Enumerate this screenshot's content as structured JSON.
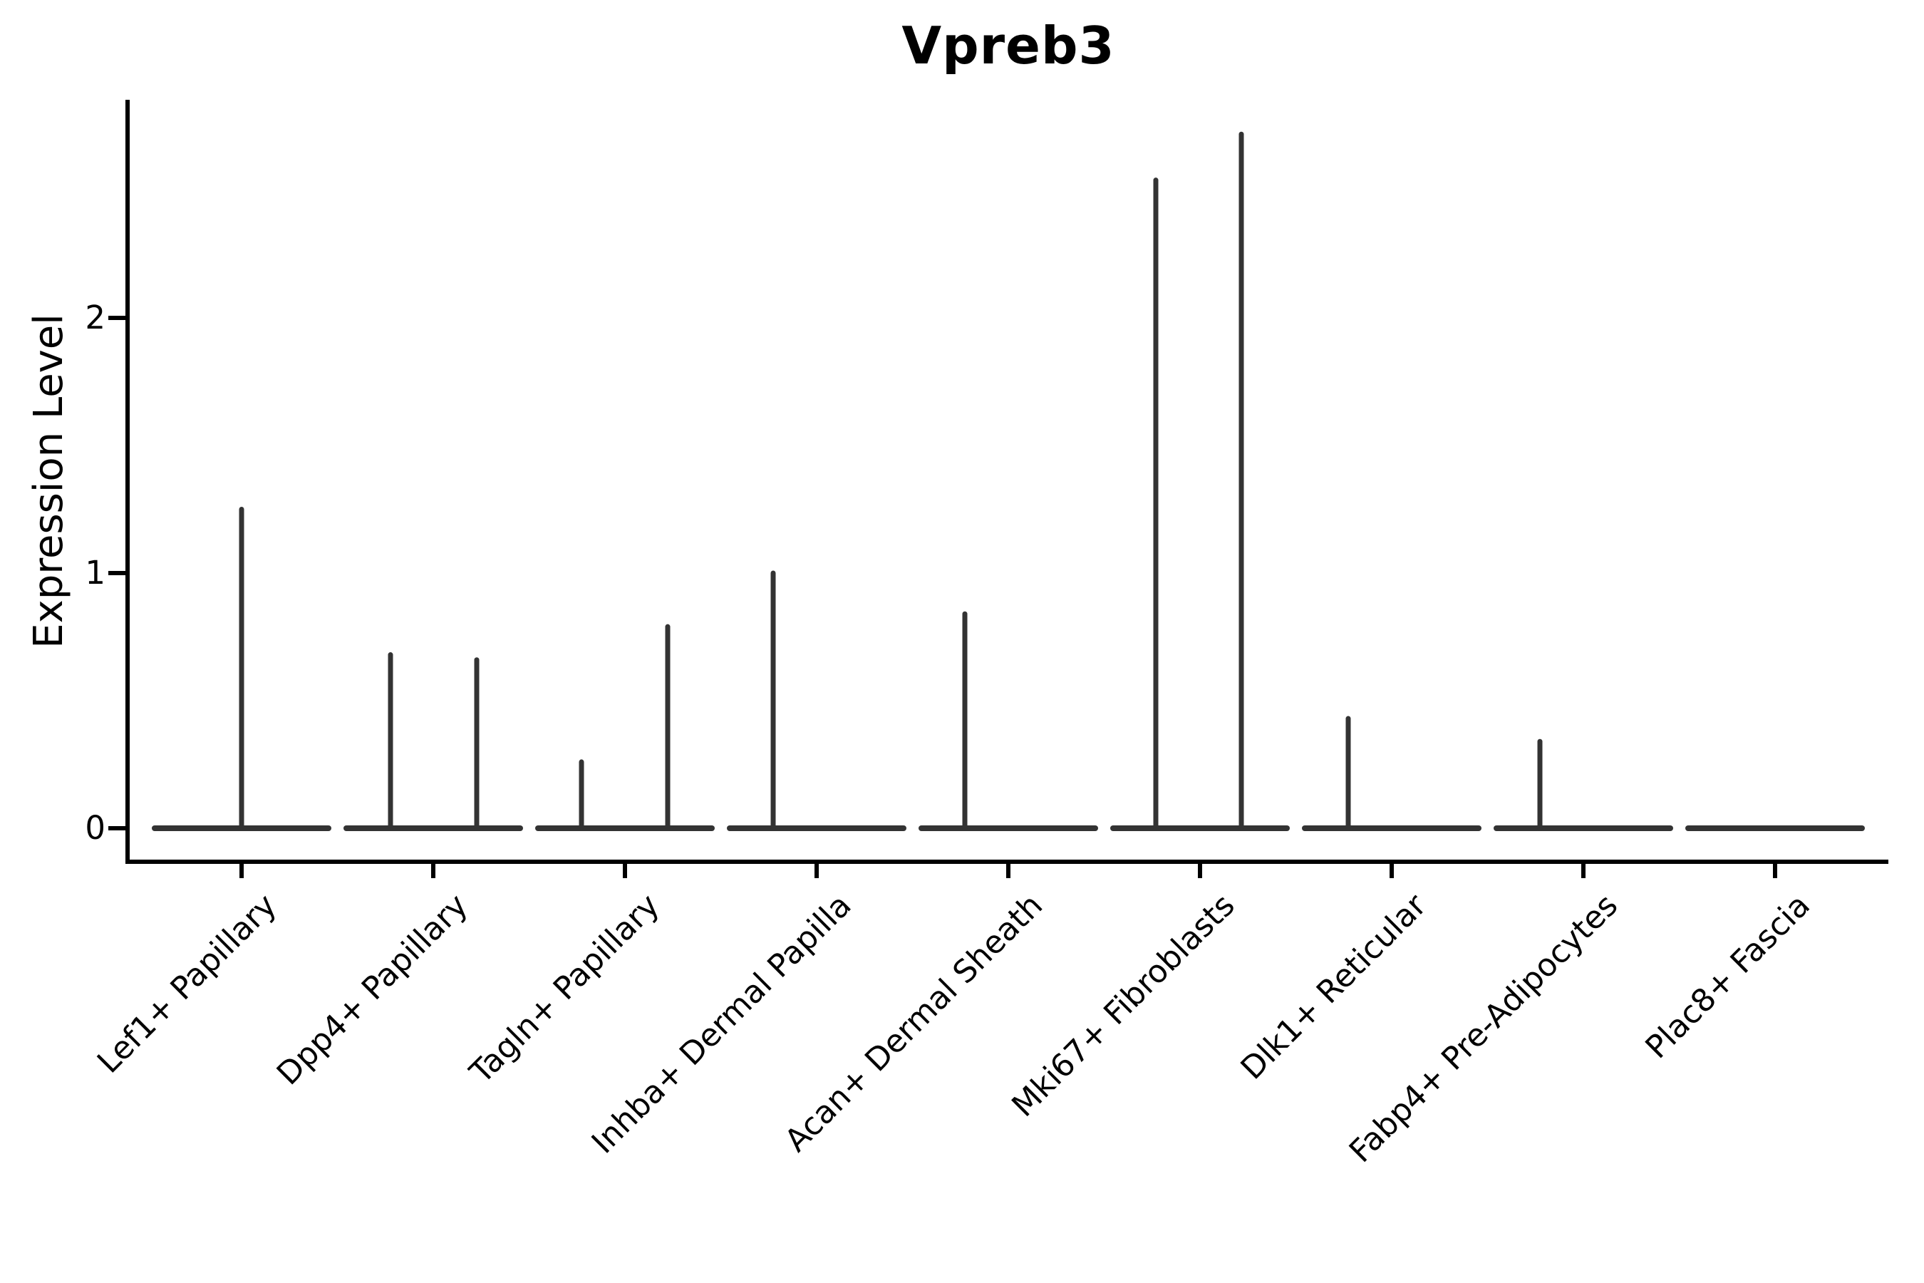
{
  "chart_data": {
    "type": "violin",
    "title": "Vpreb3",
    "xlabel": "",
    "ylabel": "Expression Level",
    "yticks": [
      0,
      1,
      2
    ],
    "ylim": [
      -0.13,
      2.85
    ],
    "grid": false,
    "legend": "none",
    "style_note": "flat zero-density violins: horizontal baseline at y=0 per category with thin vertical max-expression spikes",
    "colors": {
      "violin_stroke": "#333333",
      "axis_stroke": "#000000",
      "text": "#000000",
      "background": "#ffffff"
    },
    "categories": [
      {
        "label": "Lef1+ Papillary",
        "spikes": [
          {
            "dx": 0,
            "max": 1.25
          }
        ]
      },
      {
        "label": "Dpp4+ Papillary",
        "spikes": [
          {
            "dx": -60,
            "max": 0.68
          },
          {
            "dx": 61,
            "max": 0.66
          }
        ]
      },
      {
        "label": "Tagln+ Papillary",
        "spikes": [
          {
            "dx": -61,
            "max": 0.26
          },
          {
            "dx": 60,
            "max": 0.79
          }
        ]
      },
      {
        "label": "Inhba+ Dermal Papilla",
        "spikes": [
          {
            "dx": -61,
            "max": 1.0
          }
        ]
      },
      {
        "label": "Acan+ Dermal Sheath",
        "spikes": [
          {
            "dx": -61,
            "max": 0.84
          }
        ]
      },
      {
        "label": "Mki67+ Fibroblasts",
        "spikes": [
          {
            "dx": -62,
            "max": 2.54
          },
          {
            "dx": 58,
            "max": 2.72
          }
        ]
      },
      {
        "label": "Dlk1+ Reticular",
        "spikes": [
          {
            "dx": -61,
            "max": 0.43
          }
        ]
      },
      {
        "label": "Fabp4+ Pre-Adipocytes",
        "spikes": [
          {
            "dx": -61,
            "max": 0.34
          }
        ]
      },
      {
        "label": "Plac8+ Fascia",
        "spikes": []
      }
    ]
  }
}
